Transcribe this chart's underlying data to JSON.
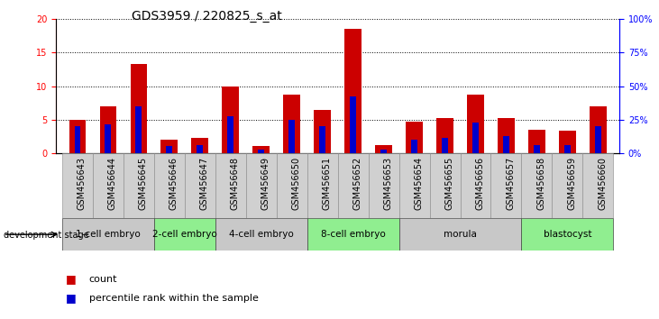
{
  "title": "GDS3959 / 220825_s_at",
  "samples": [
    "GSM456643",
    "GSM456644",
    "GSM456645",
    "GSM456646",
    "GSM456647",
    "GSM456648",
    "GSM456649",
    "GSM456650",
    "GSM456651",
    "GSM456652",
    "GSM456653",
    "GSM456654",
    "GSM456655",
    "GSM456656",
    "GSM456657",
    "GSM456658",
    "GSM456659",
    "GSM456660"
  ],
  "count": [
    5.0,
    7.0,
    13.3,
    2.0,
    2.3,
    10.0,
    1.0,
    8.7,
    6.5,
    18.5,
    1.2,
    4.7,
    5.2,
    8.8,
    5.3,
    3.5,
    3.4,
    7.0
  ],
  "percentile": [
    20.0,
    21.5,
    35.0,
    5.0,
    6.0,
    27.5,
    2.5,
    25.0,
    20.0,
    42.5,
    2.5,
    10.0,
    11.5,
    22.5,
    12.5,
    6.0,
    6.0,
    20.0
  ],
  "stages": [
    {
      "label": "1-cell embryo",
      "start": 0,
      "end": 3,
      "color": "#c8c8c8"
    },
    {
      "label": "2-cell embryo",
      "start": 3,
      "end": 5,
      "color": "#90ee90"
    },
    {
      "label": "4-cell embryo",
      "start": 5,
      "end": 8,
      "color": "#c8c8c8"
    },
    {
      "label": "8-cell embryo",
      "start": 8,
      "end": 11,
      "color": "#90ee90"
    },
    {
      "label": "morula",
      "start": 11,
      "end": 15,
      "color": "#c8c8c8"
    },
    {
      "label": "blastocyst",
      "start": 15,
      "end": 18,
      "color": "#90ee90"
    }
  ],
  "ylim_left": [
    0,
    20
  ],
  "ylim_right": [
    0,
    100
  ],
  "yticks_left": [
    0,
    5,
    10,
    15,
    20
  ],
  "yticks_right": [
    0,
    25,
    50,
    75,
    100
  ],
  "bar_color_red": "#cc0000",
  "bar_color_blue": "#0000cc",
  "bar_width": 0.55,
  "blue_bar_width": 0.2,
  "background_color": "#ffffff",
  "grid_color": "black",
  "title_fontsize": 10,
  "tick_fontsize": 7,
  "legend_fontsize": 8,
  "sample_bg_color": "#d0d0d0",
  "stage_label_fontsize": 7.5
}
